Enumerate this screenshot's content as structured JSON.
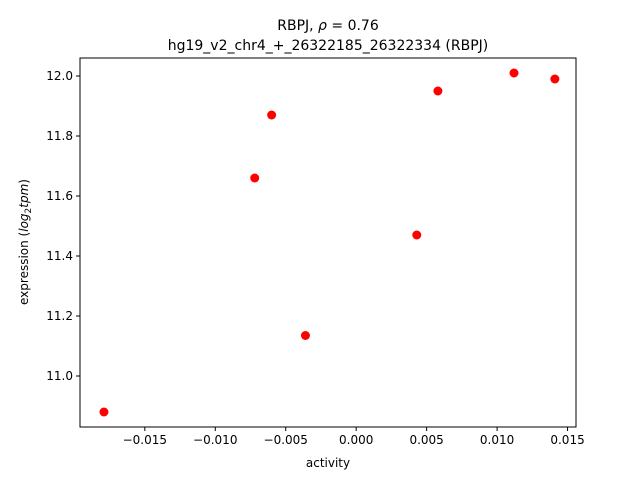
{
  "chart_data": {
    "type": "scatter",
    "title_line1_prefix": "RBPJ, ",
    "title_line1_rho": "ρ",
    "title_line1_suffix": " = 0.76",
    "title_line2": "hg19_v2_chr4_+_26322185_26322334 (RBPJ)",
    "xlabel": "activity",
    "ylabel_prefix": "expression (",
    "ylabel_log": "log",
    "ylabel_sub": "2",
    "ylabel_tpm": "tpm",
    "ylabel_suffix": ")",
    "marker_color": "#ff0000",
    "xlim": [
      -0.0196,
      0.0156
    ],
    "ylim": [
      10.83,
      12.06
    ],
    "xticks": [
      -0.015,
      -0.01,
      -0.005,
      0.0,
      0.005,
      0.01,
      0.015
    ],
    "xtick_labels": [
      "−0.015",
      "−0.010",
      "−0.005",
      "0.000",
      "0.005",
      "0.010",
      "0.015"
    ],
    "yticks": [
      11.0,
      11.2,
      11.4,
      11.6,
      11.8,
      12.0
    ],
    "ytick_labels": [
      "11.0",
      "11.2",
      "11.4",
      "11.6",
      "11.8",
      "12.0"
    ],
    "grid": false,
    "points": [
      {
        "x": -0.0179,
        "y": 10.88
      },
      {
        "x": -0.0072,
        "y": 11.66
      },
      {
        "x": -0.006,
        "y": 11.87
      },
      {
        "x": -0.0036,
        "y": 11.135
      },
      {
        "x": 0.0043,
        "y": 11.47
      },
      {
        "x": 0.0058,
        "y": 11.95
      },
      {
        "x": 0.0112,
        "y": 12.01
      },
      {
        "x": 0.0141,
        "y": 11.99
      }
    ]
  }
}
